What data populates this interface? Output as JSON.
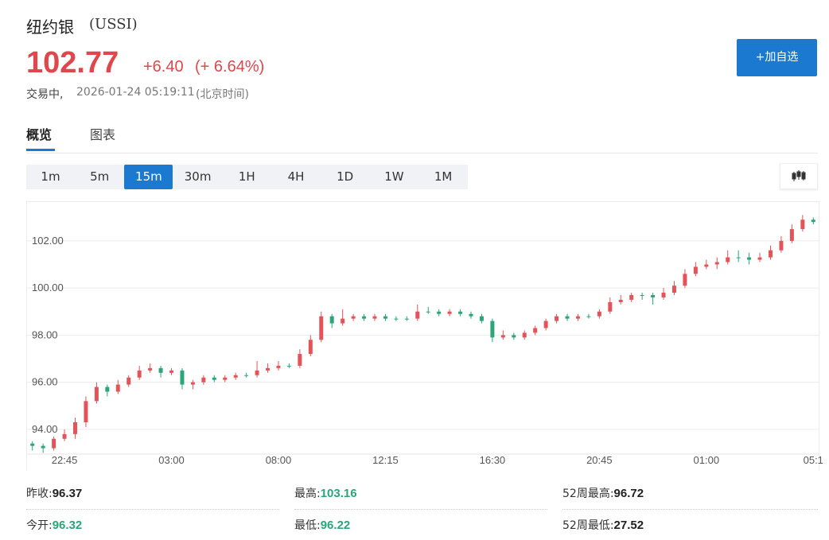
{
  "header": {
    "name": "纽约银",
    "code": "(USSI)",
    "price": "102.77",
    "change": "+6.40",
    "change_pct": "(+ 6.64%)",
    "status": "交易中,",
    "datetime": "2026-01-24 05:19:11",
    "timezone": "(北京时间)",
    "watch_button": "+加自选"
  },
  "tabs": [
    "概览",
    "图表"
  ],
  "intervals": [
    "1m",
    "5m",
    "15m",
    "30m",
    "1H",
    "4H",
    "1D",
    "1W",
    "1M"
  ],
  "active_interval": "15m",
  "chart_data": {
    "type": "candlestick",
    "up_color": "#e3545a",
    "down_color": "#2aa67a",
    "grid": true,
    "categories": [
      null,
      null,
      null,
      "22:45",
      null,
      null,
      null,
      null,
      null,
      null,
      null,
      null,
      null,
      "03:00",
      null,
      null,
      null,
      null,
      null,
      null,
      null,
      null,
      null,
      "08:00",
      null,
      null,
      null,
      null,
      null,
      null,
      null,
      null,
      null,
      "12:15",
      null,
      null,
      null,
      null,
      null,
      null,
      null,
      null,
      null,
      "16:30",
      null,
      null,
      null,
      null,
      null,
      null,
      null,
      null,
      null,
      "20:45",
      null,
      null,
      null,
      null,
      null,
      null,
      null,
      null,
      null,
      "01:00",
      null,
      null,
      null,
      null,
      null,
      null,
      null,
      null,
      null,
      "05:1"
    ],
    "open": [
      93.4,
      93.3,
      93.2,
      93.6,
      93.8,
      94.3,
      95.2,
      95.8,
      95.6,
      95.9,
      96.2,
      96.5,
      96.6,
      96.4,
      96.5,
      95.9,
      96.0,
      96.2,
      96.1,
      96.2,
      96.3,
      96.3,
      96.5,
      96.6,
      96.7,
      96.7,
      97.2,
      97.8,
      98.8,
      98.5,
      98.7,
      98.8,
      98.7,
      98.8,
      98.7,
      98.7,
      98.7,
      99.0,
      99.0,
      98.9,
      99.0,
      98.9,
      98.8,
      98.6,
      97.9,
      98.0,
      97.9,
      98.1,
      98.3,
      98.6,
      98.8,
      98.7,
      98.8,
      98.8,
      99.0,
      99.4,
      99.5,
      99.7,
      99.7,
      99.6,
      99.8,
      100.1,
      100.6,
      100.9,
      101.0,
      101.1,
      101.3,
      101.3,
      101.2,
      101.3,
      101.6,
      102.0,
      102.5,
      102.9
    ],
    "high": [
      93.5,
      93.4,
      93.7,
      94.0,
      94.5,
      95.4,
      96.0,
      95.9,
      96.1,
      96.3,
      96.7,
      96.8,
      96.7,
      96.6,
      96.6,
      96.1,
      96.3,
      96.3,
      96.3,
      96.4,
      96.4,
      96.9,
      96.8,
      96.9,
      96.8,
      97.4,
      98.0,
      99.0,
      98.9,
      99.1,
      98.9,
      98.9,
      98.9,
      98.9,
      98.8,
      98.8,
      99.3,
      99.2,
      99.1,
      99.1,
      99.1,
      99.0,
      98.9,
      98.7,
      98.2,
      98.1,
      98.2,
      98.4,
      98.7,
      98.9,
      98.9,
      98.9,
      98.9,
      99.1,
      99.6,
      99.7,
      99.8,
      99.8,
      99.8,
      100.0,
      100.3,
      100.8,
      101.1,
      101.2,
      101.3,
      101.6,
      101.6,
      101.5,
      101.5,
      101.8,
      102.2,
      102.7,
      103.1,
      103.0
    ],
    "low": [
      93.1,
      93.0,
      93.1,
      93.5,
      93.6,
      94.1,
      95.1,
      95.4,
      95.5,
      95.8,
      96.1,
      96.4,
      96.2,
      96.3,
      95.7,
      95.7,
      95.9,
      96.0,
      96.0,
      96.1,
      96.2,
      96.2,
      96.4,
      96.5,
      96.6,
      96.6,
      97.1,
      97.7,
      98.3,
      98.4,
      98.6,
      98.6,
      98.6,
      98.6,
      98.6,
      98.6,
      98.6,
      98.9,
      98.8,
      98.8,
      98.8,
      98.7,
      98.5,
      97.7,
      97.8,
      97.8,
      97.8,
      98.0,
      98.2,
      98.5,
      98.6,
      98.6,
      98.7,
      98.7,
      98.9,
      99.3,
      99.4,
      99.5,
      99.3,
      99.5,
      99.7,
      100.0,
      100.5,
      100.8,
      100.8,
      101.0,
      101.1,
      101.0,
      101.1,
      101.2,
      101.5,
      101.9,
      102.4,
      102.7
    ],
    "close": [
      93.3,
      93.2,
      93.6,
      93.8,
      94.3,
      95.2,
      95.8,
      95.6,
      95.9,
      96.2,
      96.5,
      96.6,
      96.4,
      96.5,
      95.9,
      96.0,
      96.2,
      96.1,
      96.2,
      96.3,
      96.3,
      96.5,
      96.6,
      96.7,
      96.7,
      97.2,
      97.8,
      98.8,
      98.5,
      98.7,
      98.8,
      98.7,
      98.8,
      98.7,
      98.7,
      98.7,
      99.0,
      99.0,
      98.9,
      99.0,
      98.9,
      98.8,
      98.6,
      97.9,
      98.0,
      97.9,
      98.1,
      98.3,
      98.6,
      98.8,
      98.7,
      98.8,
      98.8,
      99.0,
      99.4,
      99.5,
      99.7,
      99.7,
      99.6,
      99.8,
      100.1,
      100.6,
      100.9,
      101.0,
      101.1,
      101.3,
      101.3,
      101.2,
      101.3,
      101.6,
      102.0,
      102.5,
      102.9,
      102.8
    ],
    "ylim": [
      92.95,
      103.65
    ],
    "yticks": [
      {
        "value": 94,
        "label": "94.00"
      },
      {
        "value": 96,
        "label": "96.00"
      },
      {
        "value": 98,
        "label": "98.00"
      },
      {
        "value": 100,
        "label": "100.00"
      },
      {
        "value": 102,
        "label": "102.00"
      }
    ]
  },
  "stats": [
    [
      {
        "label": "昨收:",
        "value": "96.37"
      },
      {
        "label": "最高:",
        "value": "103.16"
      },
      {
        "label": "52周最高:",
        "value": "96.72"
      }
    ],
    [
      {
        "label": "今开:",
        "value": "96.32"
      },
      {
        "label": "最低:",
        "value": "96.22"
      },
      {
        "label": "52周最低:",
        "value": "27.52"
      }
    ]
  ]
}
